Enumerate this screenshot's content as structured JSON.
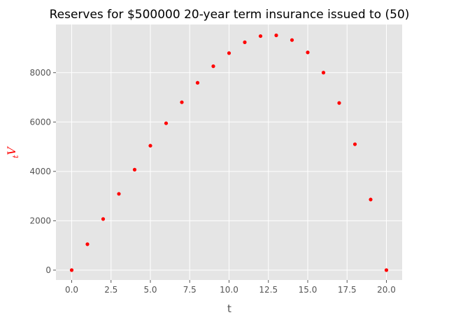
{
  "chart_data": {
    "type": "scatter",
    "title": "Reserves for $500000 20-year term insurance issued to (50)",
    "xlabel": "t",
    "ylabel_main": "V",
    "ylabel_sub": "t",
    "xlim": [
      -1.0,
      21.0
    ],
    "ylim": [
      -400,
      9950
    ],
    "xticks": [
      0.0,
      2.5,
      5.0,
      7.5,
      10.0,
      12.5,
      15.0,
      17.5,
      20.0
    ],
    "xtick_labels": [
      "0.0",
      "2.5",
      "5.0",
      "7.5",
      "10.0",
      "12.5",
      "15.0",
      "17.5",
      "20.0"
    ],
    "yticks": [
      0,
      2000,
      4000,
      6000,
      8000
    ],
    "ytick_labels": [
      "0",
      "2000",
      "4000",
      "6000",
      "8000"
    ],
    "grid": true,
    "style": "ggplot",
    "colors": {
      "background": "#e5e5e5",
      "grid": "#ffffff",
      "marker": "#ff0000",
      "ylabel": "#ff0000"
    },
    "series": [
      {
        "x": [
          0,
          1,
          2,
          3,
          4,
          5,
          6,
          7,
          8,
          9,
          10,
          11,
          12,
          13,
          14,
          15,
          16,
          17,
          18,
          19,
          20
        ],
        "y": [
          0,
          1050,
          2070,
          3090,
          4070,
          5040,
          5950,
          6800,
          7590,
          8260,
          8790,
          9230,
          9480,
          9510,
          9320,
          8820,
          8000,
          6770,
          5100,
          2860,
          0
        ]
      }
    ]
  }
}
